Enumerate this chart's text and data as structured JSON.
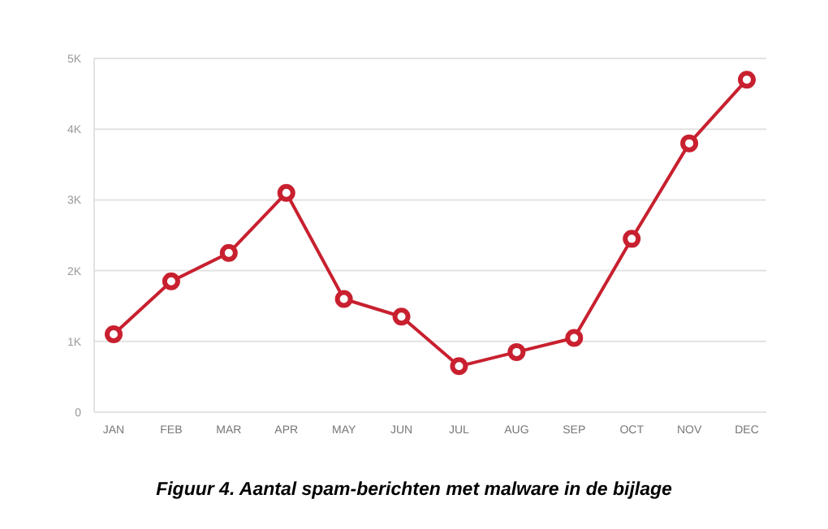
{
  "chart_data": {
    "type": "line",
    "title": "Figuur 4. Aantal spam-berichten met malware in de bijlage",
    "categories": [
      "JAN",
      "FEB",
      "MAR",
      "APR",
      "MAY",
      "JUN",
      "JUL",
      "AUG",
      "SEP",
      "OCT",
      "NOV",
      "DEC"
    ],
    "series": [
      {
        "color": "#c8202f",
        "values": [
          1100,
          1850,
          2250,
          3100,
          1600,
          1350,
          650,
          850,
          1050,
          2450,
          3800,
          4700
        ]
      }
    ],
    "ylim": [
      0,
      5000
    ],
    "yticks": [
      0,
      {
        "value": 1000,
        "label": "1K"
      },
      {
        "value": 2000,
        "label": "2K"
      },
      {
        "value": 3000,
        "label": "3K"
      },
      {
        "value": 4000,
        "label": "4K"
      },
      {
        "value": 5000,
        "label": "5K"
      }
    ],
    "grid": "y",
    "marker": "circle",
    "line_style": "solid"
  }
}
